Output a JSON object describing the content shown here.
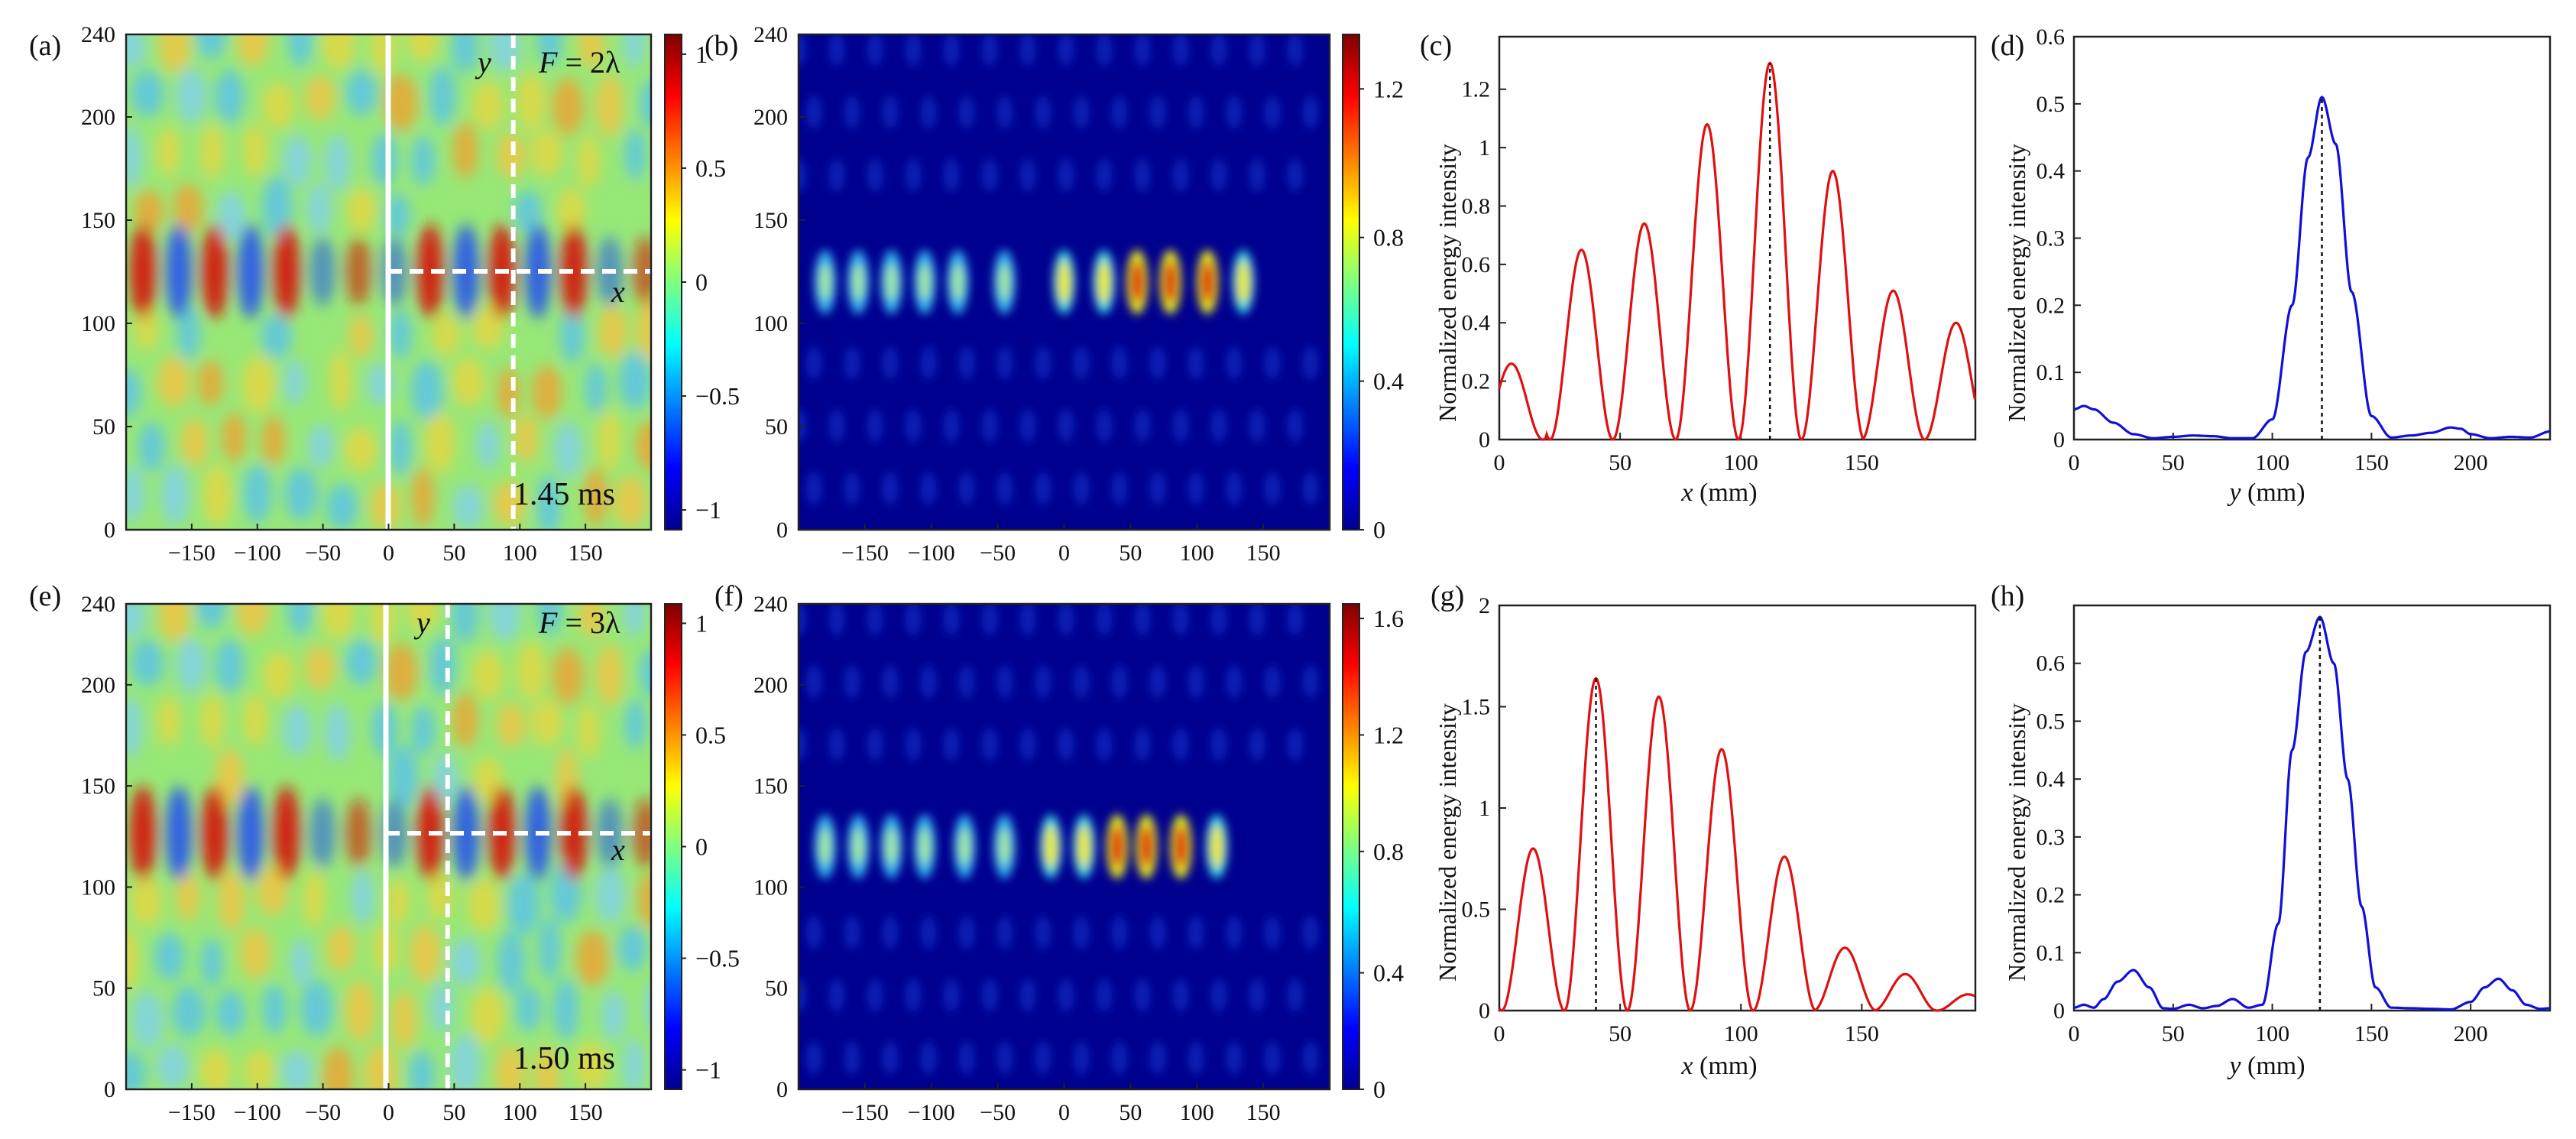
{
  "figure": {
    "panels": [
      {
        "id": "a",
        "label": "(a)",
        "kind": "field",
        "F_prefix": "F",
        "F_text": "= 2λ",
        "time": "1.45 ms",
        "axis_y_letter": "y",
        "axis_x_letter": "x",
        "xticks": [
          "-150",
          "-100",
          "-50",
          "0",
          "50",
          "100",
          "150"
        ],
        "yticks": [
          "0",
          "50",
          "100",
          "150",
          "200",
          "240"
        ],
        "cbar_ticks": [
          "1",
          "0.5",
          "0",
          "−0.5",
          "−1"
        ],
        "cut_x_mm": 95
      },
      {
        "id": "b",
        "label": "(b)",
        "kind": "intensity",
        "xticks": [
          "-150",
          "-100",
          "-50",
          "0",
          "50",
          "100",
          "150"
        ],
        "yticks": [
          "0",
          "50",
          "100",
          "150",
          "200",
          "240"
        ],
        "cbar_ticks": [
          "1.2",
          "0.8",
          "0.4",
          "0"
        ]
      },
      {
        "id": "c",
        "label": "(c)",
        "kind": "profile",
        "xvar": "x",
        "xunit": " (mm)",
        "ylabel": "Normalized energy intensity",
        "color": "#e01010"
      },
      {
        "id": "d",
        "label": "(d)",
        "kind": "profile",
        "xvar": "y",
        "xunit": " (mm)",
        "ylabel": "Normalized energy intensity",
        "color": "#1010d8"
      },
      {
        "id": "e",
        "label": "(e)",
        "kind": "field",
        "F_prefix": "F",
        "F_text": "= 3λ",
        "time": "1.50 ms",
        "axis_y_letter": "y",
        "axis_x_letter": "x",
        "xticks": [
          "-150",
          "-100",
          "-50",
          "0",
          "50",
          "100",
          "150"
        ],
        "yticks": [
          "0",
          "50",
          "100",
          "150",
          "200",
          "240"
        ],
        "cbar_ticks": [
          "1",
          "0.5",
          "0",
          "−0.5",
          "−1"
        ],
        "cut_x_mm": 45
      },
      {
        "id": "f",
        "label": "(f)",
        "kind": "intensity",
        "xticks": [
          "-150",
          "-100",
          "-50",
          "0",
          "50",
          "100",
          "150"
        ],
        "yticks": [
          "0",
          "50",
          "100",
          "150",
          "200",
          "240"
        ],
        "cbar_ticks": [
          "1.6",
          "1.2",
          "0.8",
          "0.4",
          "0"
        ]
      },
      {
        "id": "g",
        "label": "(g)",
        "kind": "profile",
        "xvar": "x",
        "xunit": " (mm)",
        "ylabel": "Normalized energy intensity",
        "color": "#e01010"
      },
      {
        "id": "h",
        "label": "(h)",
        "kind": "profile",
        "xvar": "y",
        "xunit": " (mm)",
        "ylabel": "Normalized energy intensity",
        "color": "#1010d8"
      }
    ]
  },
  "chart_data": [
    {
      "type": "heatmap",
      "panel": "a",
      "title": "",
      "xlim": [
        -200,
        200
      ],
      "ylim": [
        0,
        240
      ],
      "clim": [
        -1.2,
        1.2
      ],
      "colormap": "jet",
      "annotation": "F = 2λ",
      "time": "1.45 ms",
      "focal_line_y": 125,
      "vertical_cut_x": 95,
      "source_line_x": 0
    },
    {
      "type": "heatmap",
      "panel": "b",
      "title": "",
      "xlim": [
        -200,
        200
      ],
      "ylim": [
        0,
        240
      ],
      "clim": [
        0,
        1.35
      ],
      "colormap": "jet",
      "focus_x": [
        -180,
        -155,
        -130,
        -105,
        -80,
        -45,
        0,
        30,
        55,
        80,
        108,
        135
      ],
      "focus_y": 120
    },
    {
      "type": "line",
      "panel": "c",
      "xlabel": "x (mm)",
      "ylabel": "Normalized energy intensity",
      "xlim": [
        0,
        197
      ],
      "ylim": [
        0,
        1.38
      ],
      "xticks": [
        0,
        50,
        100,
        150
      ],
      "yticks": [
        0,
        0.2,
        0.4,
        0.6,
        0.8,
        1,
        1.2
      ],
      "peaks_x": [
        5,
        34,
        60,
        86,
        112,
        138,
        163,
        189
      ],
      "peaks_y": [
        0.26,
        0.65,
        0.74,
        1.08,
        1.29,
        0.92,
        0.51,
        0.4
      ],
      "period": 26,
      "marker_x": 112
    },
    {
      "type": "line",
      "panel": "d",
      "xlabel": "y (mm)",
      "ylabel": "Normalized energy intensity",
      "xlim": [
        0,
        240
      ],
      "ylim": [
        0,
        0.6
      ],
      "xticks": [
        0,
        50,
        100,
        150,
        200
      ],
      "yticks": [
        0,
        0.1,
        0.2,
        0.3,
        0.4,
        0.5,
        0.6
      ],
      "x": [
        0,
        5,
        10,
        20,
        30,
        40,
        50,
        60,
        70,
        80,
        90,
        100,
        110,
        118,
        125,
        132,
        140,
        150,
        160,
        170,
        180,
        190,
        195,
        200,
        210,
        220,
        230,
        240
      ],
      "values": [
        0.045,
        0.05,
        0.045,
        0.025,
        0.008,
        0.002,
        0.004,
        0.006,
        0.005,
        0.002,
        0.002,
        0.03,
        0.2,
        0.42,
        0.51,
        0.44,
        0.22,
        0.035,
        0.003,
        0.006,
        0.01,
        0.018,
        0.016,
        0.008,
        0.002,
        0.004,
        0.003,
        0.012
      ],
      "marker_x": 125
    },
    {
      "type": "heatmap",
      "panel": "e",
      "title": "",
      "xlim": [
        -200,
        200
      ],
      "ylim": [
        0,
        240
      ],
      "clim": [
        -1.2,
        1.2
      ],
      "colormap": "jet",
      "annotation": "F = 3λ",
      "time": "1.50 ms",
      "focal_line_y": 125,
      "vertical_cut_x": 45,
      "source_line_x": 0
    },
    {
      "type": "heatmap",
      "panel": "f",
      "title": "",
      "xlim": [
        -200,
        200
      ],
      "ylim": [
        0,
        240
      ],
      "clim": [
        0,
        1.65
      ],
      "colormap": "jet",
      "focus_x": [
        -180,
        -155,
        -130,
        -105,
        -75,
        -45,
        -10,
        15,
        40,
        62,
        88,
        115
      ],
      "focus_y": 120
    },
    {
      "type": "line",
      "panel": "g",
      "xlabel": "x (mm)",
      "ylabel": "Normalized energy intensity",
      "xlim": [
        0,
        197
      ],
      "ylim": [
        0,
        2
      ],
      "xticks": [
        0,
        50,
        100,
        150
      ],
      "yticks": [
        0,
        0.5,
        1,
        1.5,
        2
      ],
      "peaks_x": [
        14,
        40,
        66,
        92,
        118,
        143,
        168,
        194
      ],
      "peaks_y": [
        0.8,
        1.64,
        1.55,
        1.29,
        0.76,
        0.31,
        0.18,
        0.08
      ],
      "period": 26,
      "marker_x": 40
    },
    {
      "type": "line",
      "panel": "h",
      "xlabel": "y (mm)",
      "ylabel": "Normalized energy intensity",
      "xlim": [
        0,
        240
      ],
      "ylim": [
        0,
        0.7
      ],
      "xticks": [
        0,
        50,
        100,
        150,
        200
      ],
      "yticks": [
        0,
        0.1,
        0.2,
        0.3,
        0.4,
        0.5,
        0.6
      ],
      "x": [
        0,
        5,
        10,
        15,
        22,
        30,
        38,
        45,
        50,
        58,
        65,
        72,
        80,
        88,
        95,
        103,
        110,
        117,
        124,
        131,
        138,
        145,
        152,
        160,
        170,
        180,
        190,
        200,
        207,
        214,
        221,
        228,
        235,
        240
      ],
      "values": [
        0.005,
        0.01,
        0.005,
        0.02,
        0.05,
        0.07,
        0.04,
        0.004,
        0.003,
        0.01,
        0.004,
        0.008,
        0.02,
        0.005,
        0.01,
        0.15,
        0.45,
        0.62,
        0.68,
        0.6,
        0.4,
        0.18,
        0.04,
        0.005,
        0.004,
        0.003,
        0.002,
        0.015,
        0.04,
        0.055,
        0.035,
        0.01,
        0.003,
        0.004
      ],
      "marker_x": 124
    }
  ]
}
